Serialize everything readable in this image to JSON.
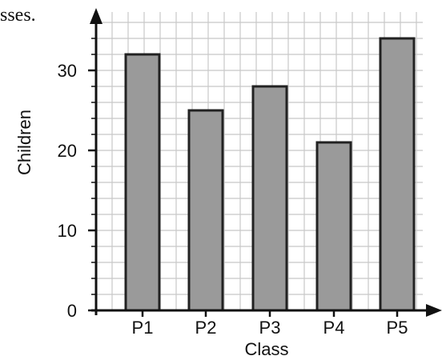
{
  "fragment_text": "sses.",
  "chart_data": {
    "type": "bar",
    "categories": [
      "P1",
      "P2",
      "P3",
      "P4",
      "P5"
    ],
    "values": [
      32,
      25,
      28,
      21,
      34
    ],
    "xlabel": "Class",
    "ylabel": "Children",
    "ylim": [
      0,
      36
    ],
    "yticks": [
      0,
      10,
      20,
      30
    ],
    "grid": true,
    "minor_grid_step": 2,
    "bar_color": "#9a9a9a",
    "bar_edge_color": "#222222",
    "grid_color": "#c8c8c8"
  }
}
